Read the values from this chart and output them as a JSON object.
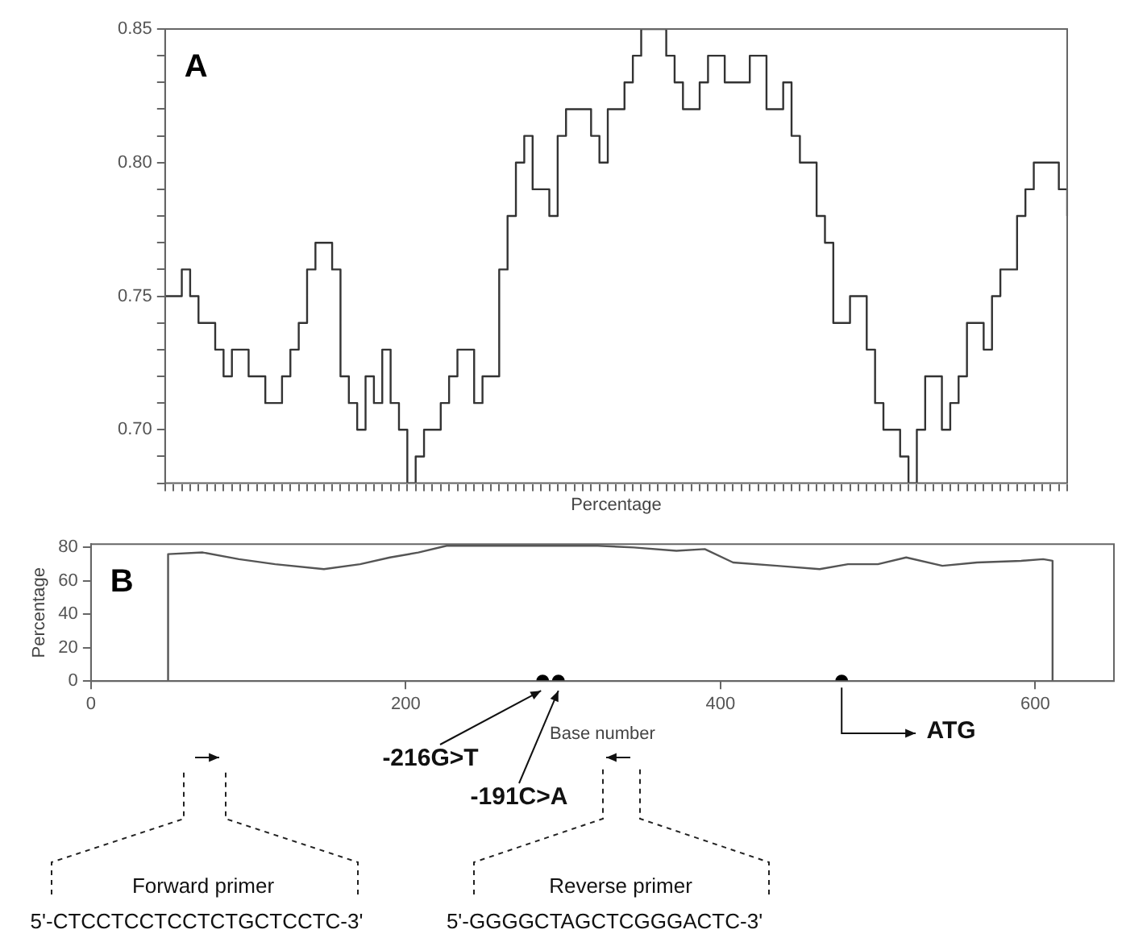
{
  "chart_data": [
    {
      "type": "step",
      "title": "A",
      "xlabel": "Percentage",
      "tick_labels": "y",
      "categories": [
        null,
        null,
        null,
        null,
        null,
        null,
        null,
        null,
        null,
        null,
        null,
        null,
        null,
        null,
        null,
        null,
        null,
        null,
        null,
        null,
        null,
        null,
        null,
        null,
        null,
        null,
        null,
        null,
        null,
        null,
        null,
        null,
        null,
        null,
        null,
        null,
        null,
        null,
        null,
        null,
        null,
        null,
        null,
        null,
        null,
        null,
        null,
        null,
        null,
        null,
        null,
        null,
        null,
        null,
        null,
        null,
        null,
        null,
        null,
        null,
        null,
        null,
        null,
        null,
        null,
        null,
        null,
        null,
        null,
        null,
        null,
        null,
        null,
        null,
        null,
        null,
        null,
        null,
        null,
        null,
        null,
        null,
        null,
        null,
        null,
        null,
        null,
        null,
        null,
        null,
        null,
        null,
        null,
        null,
        null,
        null,
        null,
        null,
        null,
        null,
        null,
        null,
        null,
        null,
        null,
        null,
        null,
        null,
        null
      ],
      "values": [
        0.75,
        0.75,
        0.76,
        0.75,
        0.74,
        0.74,
        0.73,
        0.72,
        0.73,
        0.73,
        0.72,
        0.72,
        0.71,
        0.71,
        0.72,
        0.73,
        0.74,
        0.76,
        0.77,
        0.77,
        0.76,
        0.72,
        0.71,
        0.7,
        0.72,
        0.71,
        0.73,
        0.71,
        0.7,
        0.68,
        0.69,
        0.7,
        0.7,
        0.71,
        0.72,
        0.73,
        0.73,
        0.71,
        0.72,
        0.72,
        0.76,
        0.78,
        0.8,
        0.81,
        0.79,
        0.79,
        0.78,
        0.81,
        0.82,
        0.82,
        0.82,
        0.81,
        0.8,
        0.82,
        0.82,
        0.83,
        0.84,
        0.85,
        0.85,
        0.85,
        0.84,
        0.83,
        0.82,
        0.82,
        0.83,
        0.84,
        0.84,
        0.83,
        0.83,
        0.83,
        0.84,
        0.84,
        0.82,
        0.82,
        0.83,
        0.81,
        0.8,
        0.8,
        0.78,
        0.77,
        0.74,
        0.74,
        0.75,
        0.75,
        0.73,
        0.71,
        0.7,
        0.7,
        0.69,
        0.68,
        0.7,
        0.72,
        0.72,
        0.7,
        0.71,
        0.72,
        0.74,
        0.74,
        0.73,
        0.75,
        0.76,
        0.76,
        0.78,
        0.79,
        0.8,
        0.8,
        0.8,
        0.79,
        0.78
      ],
      "color": "#333333",
      "ylim": [
        0.68,
        0.85
      ],
      "yticks": [
        {
          "value": 0.68,
          "label": null
        },
        {
          "value": 0.69,
          "label": null
        },
        {
          "value": 0.7,
          "label": "0.70"
        },
        {
          "value": 0.71,
          "label": null
        },
        {
          "value": 0.72,
          "label": null
        },
        {
          "value": 0.73,
          "label": null
        },
        {
          "value": 0.74,
          "label": null
        },
        0.75,
        {
          "value": 0.76,
          "label": null
        },
        {
          "value": 0.77,
          "label": null
        },
        {
          "value": 0.78,
          "label": null
        },
        {
          "value": 0.79,
          "label": null
        },
        {
          "value": 0.8,
          "label": "0.80"
        },
        {
          "value": 0.81,
          "label": null
        },
        {
          "value": 0.82,
          "label": null
        },
        {
          "value": 0.83,
          "label": null
        },
        {
          "value": 0.84,
          "label": null
        },
        0.85
      ]
    },
    {
      "type": "line",
      "title": "B",
      "xlabel": "Base number",
      "ylabel": "Percentage",
      "xlim": [
        0,
        650
      ],
      "xticks": [
        0,
        200,
        400,
        600
      ],
      "ylim": [
        0,
        82
      ],
      "yticks": [
        0,
        20,
        40,
        60,
        80
      ],
      "series": [
        {
          "color": "#555555",
          "x": [
            49,
            49,
            71,
            94,
            117,
            148,
            171,
            190,
            208,
            226,
            253,
            281,
            299,
            322,
            345,
            372,
            390,
            408,
            436,
            463,
            481,
            500,
            518,
            541,
            563,
            591,
            605,
            611,
            611
          ],
          "values": [
            0,
            76,
            77,
            73,
            70,
            67,
            70,
            74,
            77,
            81,
            81,
            81,
            81,
            81,
            80,
            78,
            79,
            71,
            69,
            67,
            70,
            70,
            74,
            69,
            71,
            72,
            73,
            72,
            0
          ]
        },
        {
          "type": "scatter",
          "marker": "circle",
          "color": "#000000",
          "x": [
            287,
            297,
            477
          ],
          "values": [
            0,
            0,
            0
          ]
        }
      ],
      "annotations": [
        "-216G>T",
        "-191C>A",
        "ATG",
        "Forward primer",
        "5'-CTCCTCCTCCTCTGCTCCTC-3'",
        "Reverse primer",
        "5'-GGGGCTAGCTCGGGACTC-3'"
      ]
    }
  ]
}
